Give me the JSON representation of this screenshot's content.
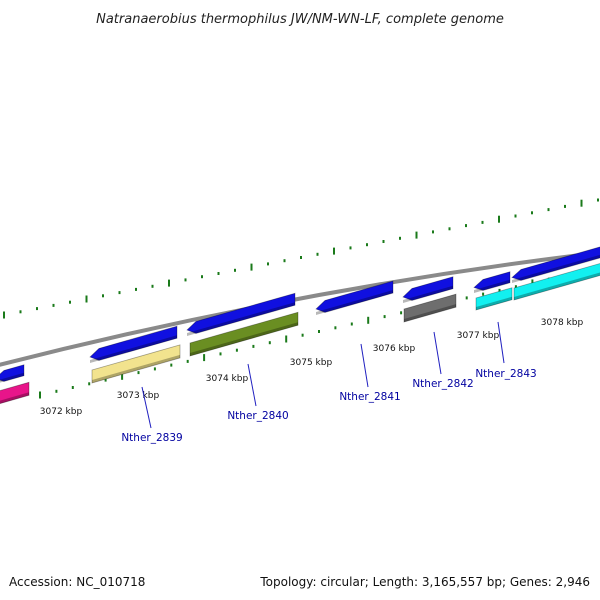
{
  "title": "Natranaerobius thermophilus JW/NM-WN-LF, complete genome",
  "footer": {
    "accession": "Accession: NC_010718",
    "summary": "Topology: circular; Length: 3,165,557 bp; Genes: 2,946"
  },
  "colors": {
    "backbone": "#8a8a8a",
    "tick": "#1a7a1a",
    "cds_forward": "#1010e0",
    "gene_label": "#0000a0",
    "label_line": "#2020c0",
    "magenta": "#e8158a",
    "khaki": "#f2e38e",
    "olive": "#6a8e22",
    "gray": "#6e6e6e",
    "cyan": "#12f0f0"
  },
  "scale_labels": [
    "3072 kbp",
    "3073 kbp",
    "3074 kbp",
    "3075 kbp",
    "3076 kbp",
    "3077 kbp",
    "3078 kbp"
  ],
  "gene_labels": [
    "Nther_2839",
    "Nther_2840",
    "Nther_2841",
    "Nther_2842",
    "Nther_2843"
  ],
  "features": [
    {
      "ring": "outer",
      "color": "cds_forward"
    },
    {
      "ring": "outer",
      "color": "cds_forward"
    },
    {
      "ring": "outer",
      "color": "cds_forward"
    },
    {
      "ring": "outer",
      "color": "cds_forward"
    },
    {
      "ring": "outer",
      "color": "cds_forward"
    },
    {
      "ring": "outer",
      "color": "cds_forward"
    },
    {
      "ring": "outer",
      "color": "cds_forward"
    },
    {
      "ring": "inner",
      "color": "magenta"
    },
    {
      "ring": "inner",
      "color": "khaki"
    },
    {
      "ring": "inner",
      "color": "olive"
    },
    {
      "ring": "inner",
      "color": "gray"
    },
    {
      "ring": "inner",
      "color": "cyan"
    }
  ]
}
